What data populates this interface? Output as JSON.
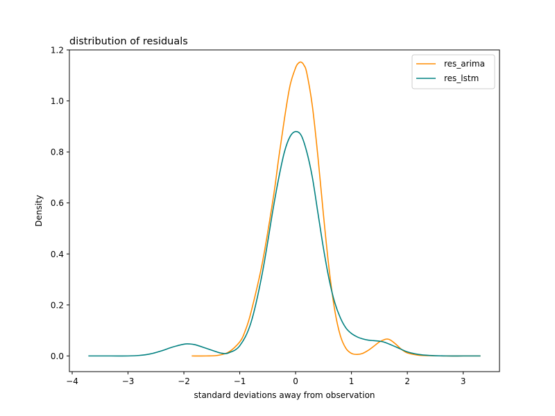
{
  "chart_data": {
    "type": "line",
    "title": "distribution of residuals",
    "xlabel": "standard deviations away from observation",
    "ylabel": "Density",
    "xlim": [
      -4.05,
      3.65
    ],
    "ylim": [
      -0.0615,
      1.2
    ],
    "xticks": [
      -4,
      -3,
      -2,
      -1,
      0,
      1,
      2,
      3
    ],
    "xtick_labels": [
      "−4",
      "−3",
      "−2",
      "−1",
      "0",
      "1",
      "2",
      "3"
    ],
    "yticks": [
      0.0,
      0.2,
      0.4,
      0.6,
      0.8,
      1.0,
      1.2
    ],
    "ytick_labels": [
      "0.0",
      "0.2",
      "0.4",
      "0.6",
      "0.8",
      "1.0",
      "1.2"
    ],
    "grid": false,
    "legend_position": "top-right",
    "series": [
      {
        "name": "res_arima",
        "color": "#ff8c00",
        "x": [
          -1.85,
          -1.6,
          -1.4,
          -1.2,
          -1.0,
          -0.9,
          -0.8,
          -0.6,
          -0.4,
          -0.3,
          -0.2,
          -0.1,
          0.0,
          0.05,
          0.1,
          0.15,
          0.2,
          0.3,
          0.4,
          0.5,
          0.6,
          0.7,
          0.8,
          0.9,
          1.0,
          1.1,
          1.2,
          1.3,
          1.4,
          1.5,
          1.6,
          1.65,
          1.7,
          1.8,
          1.9,
          2.0,
          2.2,
          2.4,
          2.7,
          3.0,
          3.3
        ],
        "y": [
          0.0,
          0.0,
          0.002,
          0.015,
          0.055,
          0.1,
          0.17,
          0.36,
          0.62,
          0.78,
          0.93,
          1.06,
          1.13,
          1.148,
          1.152,
          1.14,
          1.11,
          0.98,
          0.78,
          0.55,
          0.34,
          0.18,
          0.08,
          0.03,
          0.01,
          0.006,
          0.01,
          0.022,
          0.038,
          0.055,
          0.065,
          0.066,
          0.062,
          0.045,
          0.025,
          0.012,
          0.003,
          0.001,
          0.0,
          0.0,
          0.0
        ]
      },
      {
        "name": "res_lstm",
        "color": "#008080",
        "x": [
          -3.7,
          -3.3,
          -3.0,
          -2.8,
          -2.6,
          -2.4,
          -2.2,
          -2.0,
          -1.9,
          -1.8,
          -1.6,
          -1.4,
          -1.3,
          -1.2,
          -1.0,
          -0.8,
          -0.6,
          -0.4,
          -0.3,
          -0.2,
          -0.1,
          0.0,
          0.1,
          0.2,
          0.3,
          0.4,
          0.5,
          0.6,
          0.7,
          0.8,
          0.9,
          1.0,
          1.1,
          1.2,
          1.3,
          1.4,
          1.5,
          1.6,
          1.8,
          2.0,
          2.2,
          2.4,
          2.7,
          3.0,
          3.3
        ],
        "y": [
          0.0,
          0.0,
          0.0,
          0.002,
          0.008,
          0.02,
          0.035,
          0.046,
          0.047,
          0.044,
          0.03,
          0.015,
          0.01,
          0.012,
          0.04,
          0.13,
          0.32,
          0.58,
          0.7,
          0.8,
          0.86,
          0.88,
          0.865,
          0.8,
          0.7,
          0.56,
          0.42,
          0.3,
          0.21,
          0.15,
          0.11,
          0.088,
          0.075,
          0.067,
          0.062,
          0.06,
          0.058,
          0.053,
          0.035,
          0.016,
          0.006,
          0.002,
          0.0,
          0.0,
          0.0
        ]
      }
    ]
  }
}
